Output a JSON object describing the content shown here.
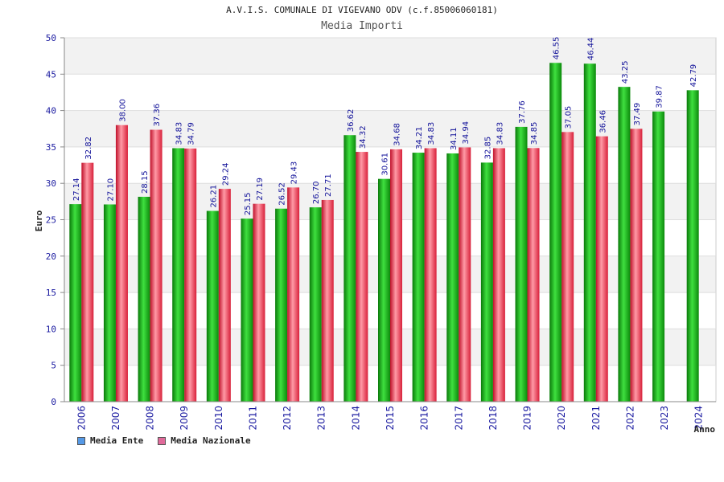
{
  "chart_data": {
    "type": "bar",
    "title": "A.V.I.S. COMUNALE DI VIGEVANO ODV (c.f.85006060181)",
    "subtitle": "Media Importi",
    "xlabel": "Anno",
    "ylabel": "Euro",
    "ylim": [
      0,
      50
    ],
    "yticks": [
      0,
      5,
      10,
      15,
      20,
      25,
      30,
      35,
      40,
      45,
      50
    ],
    "grid": true,
    "legend_position": "bottom-left",
    "categories": [
      "2006",
      "2007",
      "2008",
      "2009",
      "2010",
      "2011",
      "2012",
      "2013",
      "2014",
      "2015",
      "2016",
      "2017",
      "2018",
      "2019",
      "2020",
      "2021",
      "2022",
      "2023",
      "2024"
    ],
    "series": [
      {
        "name": "Media Ente",
        "color": "#1ea51e",
        "swatch_color": "#5599e6",
        "values": [
          27.14,
          27.1,
          28.15,
          34.83,
          26.21,
          25.15,
          26.52,
          26.7,
          36.62,
          30.61,
          34.21,
          34.11,
          32.85,
          37.76,
          46.55,
          46.44,
          43.25,
          39.87,
          42.79
        ],
        "labels": [
          "27.14",
          "27.10",
          "28.15",
          "34.83",
          "26.21",
          "25.15",
          "26.52",
          "26.70",
          "36.62",
          "30.61",
          "34.21",
          "34.11",
          "32.85",
          "37.76",
          "46.55",
          "46.44",
          "43.25",
          "39.87",
          "42.79"
        ]
      },
      {
        "name": "Media Nazionale",
        "color": "#e02a3a",
        "swatch_color": "#e06a9a",
        "values": [
          32.82,
          38.0,
          37.36,
          34.79,
          29.24,
          27.19,
          29.43,
          27.71,
          34.32,
          34.68,
          34.83,
          34.94,
          34.83,
          34.85,
          37.05,
          36.46,
          37.49,
          null,
          null
        ],
        "labels": [
          "32.82",
          "38.00",
          "37.36",
          "34.79",
          "29.24",
          "27.19",
          "29.43",
          "27.71",
          "34.32",
          "34.68",
          "34.83",
          "34.94",
          "34.83",
          "34.85",
          "37.05",
          "36.46",
          "37.49",
          "",
          ""
        ]
      }
    ]
  }
}
